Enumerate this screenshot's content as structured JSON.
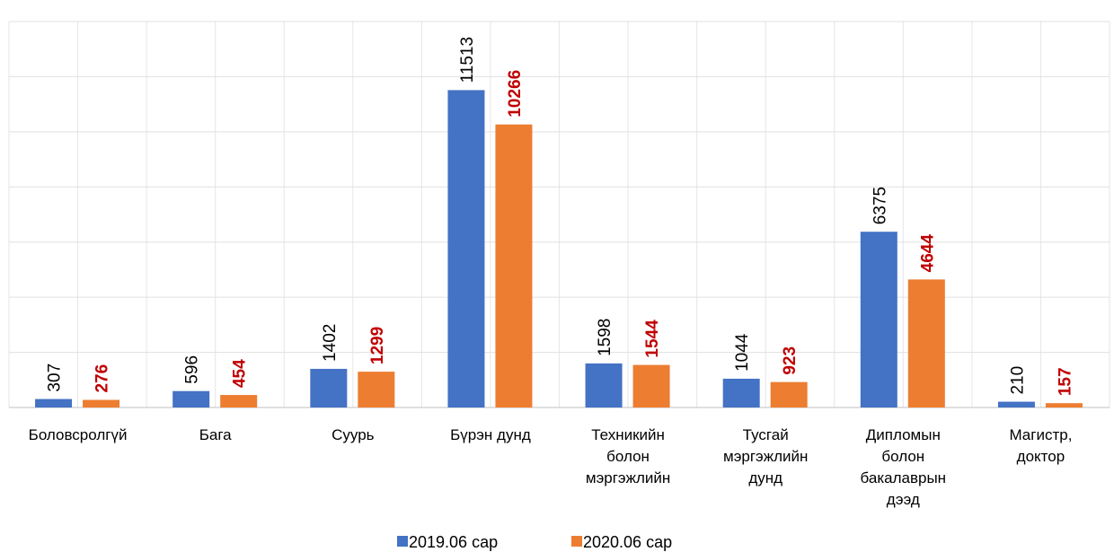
{
  "chart_data": {
    "type": "bar",
    "categories": [
      "Боловсролгүй",
      "Бага",
      "Суурь",
      "Бүрэн дунд",
      "Техникийн болон мэргэжлийн",
      "Тусгай мэргэжлийн дунд",
      "Дипломын болон бакалаврын дээд",
      "Магистр, доктор"
    ],
    "series": [
      {
        "name": "2019.06 сар",
        "color": "#4472c4",
        "label_color": "#000000",
        "label_bold": false,
        "values": [
          307,
          596,
          1402,
          11513,
          1598,
          1044,
          6375,
          210
        ]
      },
      {
        "name": "2020.06 сар",
        "color": "#ed7d31",
        "label_color": "#c00000",
        "label_bold": true,
        "values": [
          276,
          454,
          1299,
          10266,
          1544,
          923,
          4644,
          157
        ]
      }
    ],
    "ylim": [
      0,
      14000
    ],
    "yticks": [
      0,
      2000,
      4000,
      6000,
      8000,
      10000,
      12000,
      14000
    ],
    "grid": true,
    "legend": "bottom"
  }
}
